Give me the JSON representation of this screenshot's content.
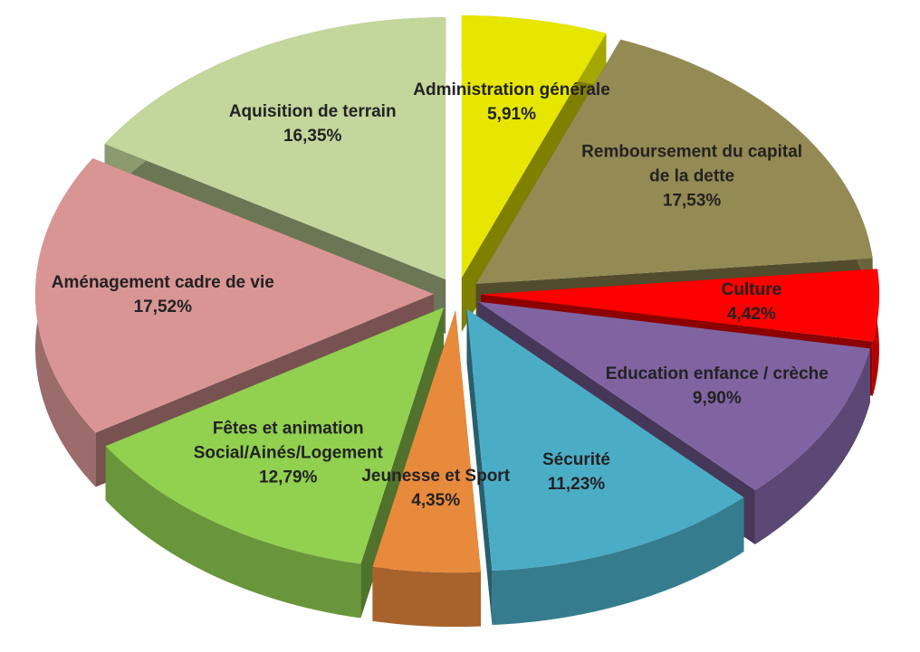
{
  "chart_data": {
    "type": "pie",
    "categories": [
      "Administration générale",
      "Remboursement du capital de la dette",
      "Culture",
      "Education enfance / crèche",
      "Sécurité",
      "Jeunesse et Sport",
      "Fêtes et animation Social/Ainés/Logement",
      "Aménagement cadre de vie",
      "Aquisition de terrain"
    ],
    "values": [
      5.91,
      17.53,
      4.42,
      9.9,
      11.23,
      4.35,
      12.79,
      17.52,
      16.35
    ],
    "value_labels": [
      "5,91%",
      "17,53%",
      "4,42%",
      "9,90%",
      "11,23%",
      "4,35%",
      "12,79%",
      "17,52%",
      "16,35%"
    ],
    "colors": [
      "#e6e600",
      "#948a54",
      "#ff0000",
      "#8064a2",
      "#4bacc6",
      "#e88a3c",
      "#92d050",
      "#d99594",
      "#c3d69b"
    ]
  }
}
